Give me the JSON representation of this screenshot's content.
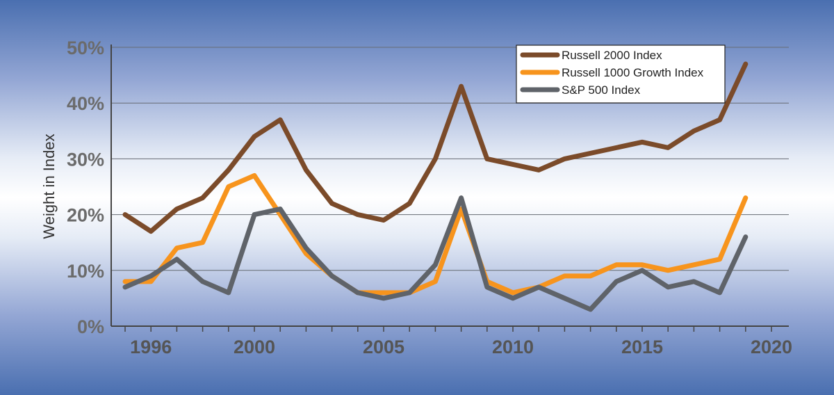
{
  "chart_data": {
    "type": "line",
    "title": "",
    "xlabel": "",
    "ylabel": "Weight in Index",
    "ylim": [
      0,
      50
    ],
    "xlim": [
      1995,
      2021
    ],
    "y_tick_labels": [
      "0%",
      "10%",
      "20%",
      "30%",
      "40%",
      "50%"
    ],
    "x_tick_labels": [
      "1996",
      "2000",
      "2005",
      "2010",
      "2015",
      "2020"
    ],
    "x_tick_values": [
      1996,
      2000,
      2005,
      2010,
      2015,
      2020
    ],
    "grid": "horizontal",
    "legend_position": "top-right",
    "x": [
      1995,
      1996,
      1997,
      1998,
      1999,
      2000,
      2001,
      2002,
      2003,
      2004,
      2005,
      2006,
      2007,
      2008,
      2009,
      2010,
      2011,
      2012,
      2013,
      2014,
      2015,
      2016,
      2017,
      2018,
      2019,
      2020
    ],
    "series": [
      {
        "name": "Russell 2000 Index",
        "color": "#7b4b2a",
        "values": [
          20,
          17,
          21,
          23,
          28,
          34,
          37,
          28,
          22,
          20,
          19,
          22,
          30,
          43,
          30,
          29,
          28,
          30,
          31,
          32,
          33,
          32,
          35,
          37,
          47,
          null
        ]
      },
      {
        "name": "Russell 1000 Growth Index",
        "color": "#f7941d",
        "values": [
          8,
          8,
          14,
          15,
          25,
          27,
          20,
          13,
          9,
          6,
          6,
          6,
          8,
          21,
          8,
          6,
          7,
          9,
          9,
          11,
          11,
          10,
          11,
          12,
          23,
          null
        ]
      },
      {
        "name": "S&P 500 Index",
        "color": "#5f6369",
        "values": [
          7,
          9,
          12,
          8,
          6,
          20,
          21,
          14,
          9,
          6,
          5,
          6,
          11,
          23,
          7,
          5,
          7,
          5,
          3,
          8,
          10,
          7,
          8,
          6,
          16,
          null
        ]
      }
    ]
  }
}
